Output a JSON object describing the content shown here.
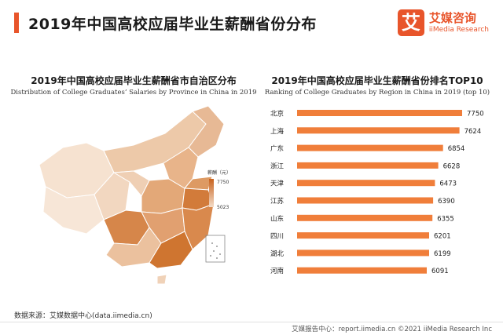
{
  "header": {
    "title": "2019年中国高校应届毕业生薪酬省份分布"
  },
  "logo": {
    "mark": "艾",
    "cn": "艾媒咨询",
    "en": "iiMedia Research"
  },
  "left_panel": {
    "title": "2019年中国高校应届毕业生薪酬省市自治区分布",
    "subtitle": "Distribution of College Graduates’ Salaries by Province in China in 2019",
    "legend_title": "薪酬（元）",
    "legend_max": "7750",
    "legend_min": "5023"
  },
  "right_panel": {
    "title": "2019年中国高校应届毕业生薪酬省份排名TOP10",
    "subtitle": "Ranking of College Graduates by Region in China in 2019 (top 10)"
  },
  "chart_data": [
    {
      "type": "heatmap",
      "title": "2019年中国高校应届毕业生薪酬省市自治区分布",
      "subtitle": "Distribution of College Graduates’ Salaries by Province in China in 2019",
      "legend": {
        "title": "薪酬（元）",
        "max": 7750,
        "min": 5023,
        "colors": [
          "#f3dcc8",
          "#c8631e"
        ]
      }
    },
    {
      "type": "bar",
      "orientation": "horizontal",
      "title": "2019年中国高校应届毕业生薪酬省份排名TOP10",
      "subtitle": "Ranking of College Graduates by Region in China in 2019 (top 10)",
      "categories": [
        "北京",
        "上海",
        "广东",
        "浙江",
        "天津",
        "江苏",
        "山东",
        "四川",
        "湖北",
        "河南"
      ],
      "values": [
        7750,
        7624,
        6854,
        6628,
        6473,
        6390,
        6355,
        6201,
        6199,
        6091
      ],
      "xlim": [
        0,
        7750
      ],
      "color": "#f07e3a",
      "grid": false
    }
  ],
  "source": "数据来源：艾媒数据中心(data.iimedia.cn)",
  "footer": "艾媒报告中心：report.iimedia.cn   ©2021  iiMedia Research  Inc"
}
